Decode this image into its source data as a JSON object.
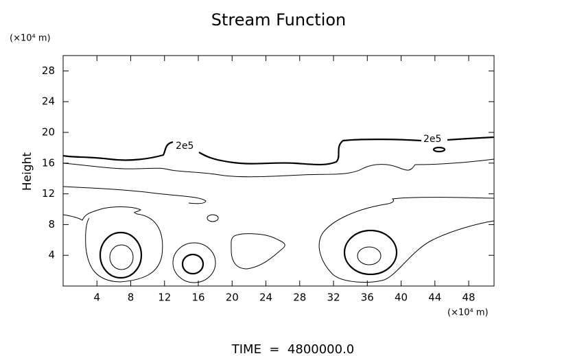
{
  "chart_data": {
    "type": "contour",
    "title": "Stream Function",
    "ylabel": "Height",
    "y_unit": "(×10⁴ m)",
    "x_unit": "(×10⁴ m)",
    "xlim": [
      0,
      51
    ],
    "ylim": [
      0,
      30
    ],
    "xticks": [
      4,
      8,
      12,
      16,
      20,
      24,
      28,
      32,
      36,
      40,
      44,
      48
    ],
    "yticks": [
      4,
      8,
      12,
      16,
      20,
      24,
      28
    ],
    "contour_labels": [
      "2e5",
      "2e5"
    ],
    "footer": "TIME  =  4800000.0"
  }
}
